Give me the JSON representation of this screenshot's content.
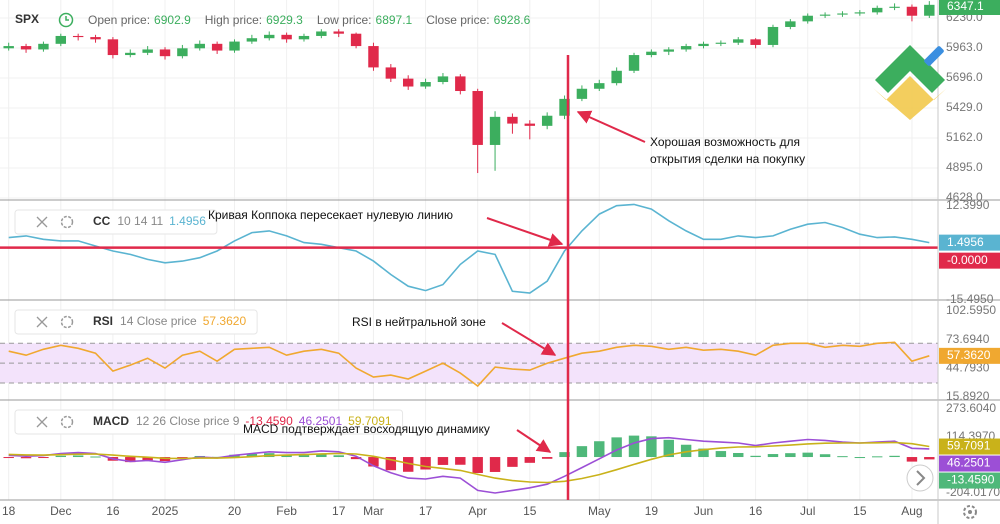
{
  "header": {
    "symbol": "SPX",
    "fields": [
      {
        "label": "Open price:",
        "value": 6902.9
      },
      {
        "label": "High price:",
        "value": 6929.3
      },
      {
        "label": "Low price:",
        "value": 6897.1
      },
      {
        "label": "Close price:",
        "value": 6928.6
      }
    ]
  },
  "chart_data": [
    {
      "type": "candlestick",
      "up_color": "#3cae5e",
      "down_color": "#e0294a",
      "grid": true,
      "categories": [
        "18",
        null,
        null,
        "Dec",
        null,
        null,
        "16",
        null,
        null,
        "2025",
        null,
        null,
        null,
        "20",
        null,
        null,
        "Feb",
        null,
        null,
        "17",
        null,
        "Mar",
        null,
        null,
        "17",
        null,
        null,
        "Apr",
        null,
        null,
        "15",
        null,
        null,
        null,
        "May",
        null,
        null,
        "19",
        null,
        null,
        "Jun",
        null,
        null,
        "16",
        null,
        null,
        "Jul",
        null,
        null,
        "15",
        null,
        null,
        "Aug",
        null
      ],
      "open": [
        5960,
        5980,
        5950,
        6000,
        6070,
        6060,
        6040,
        5900,
        5920,
        5950,
        5890,
        5960,
        6000,
        5940,
        6020,
        6050,
        6080,
        6040,
        6070,
        6110,
        6090,
        5980,
        5790,
        5690,
        5620,
        5660,
        5710,
        5580,
        5100,
        5350,
        5290,
        5270,
        5360,
        5510,
        5600,
        5650,
        5760,
        5900,
        5930,
        5950,
        5980,
        6000,
        6010,
        6040,
        5990,
        6150,
        6200,
        6250,
        6260,
        6270,
        6280,
        6320,
        6330,
        6250
      ],
      "high": [
        6010,
        6000,
        6020,
        6090,
        6090,
        6080,
        6060,
        5950,
        5980,
        5970,
        5990,
        6030,
        6020,
        6040,
        6080,
        6110,
        6100,
        6090,
        6130,
        6130,
        6100,
        6010,
        5820,
        5720,
        5690,
        5740,
        5730,
        5600,
        5400,
        5380,
        5320,
        5390,
        5540,
        5630,
        5680,
        5790,
        5920,
        5950,
        5970,
        6000,
        6020,
        6030,
        6060,
        6050,
        6170,
        6220,
        6270,
        6280,
        6290,
        6300,
        6340,
        6360,
        6350,
        6380
      ],
      "low": [
        5940,
        5920,
        5930,
        5980,
        6030,
        6010,
        5870,
        5880,
        5900,
        5860,
        5870,
        5940,
        5910,
        5920,
        6000,
        6030,
        6010,
        6020,
        6050,
        6060,
        5960,
        5760,
        5660,
        5590,
        5600,
        5640,
        5550,
        4850,
        4870,
        5200,
        5150,
        5240,
        5330,
        5490,
        5580,
        5630,
        5740,
        5880,
        5900,
        5930,
        5960,
        5980,
        5990,
        5960,
        5970,
        6130,
        6180,
        6230,
        6240,
        6250,
        6260,
        6300,
        6200,
        6230
      ],
      "close": [
        5980,
        5950,
        6000,
        6070,
        6060,
        6040,
        5900,
        5920,
        5950,
        5890,
        5960,
        6000,
        5940,
        6020,
        6050,
        6080,
        6040,
        6070,
        6110,
        6090,
        5980,
        5790,
        5690,
        5620,
        5660,
        5710,
        5580,
        5100,
        5350,
        5290,
        5270,
        5360,
        5510,
        5600,
        5650,
        5760,
        5900,
        5930,
        5950,
        5980,
        6000,
        6010,
        6040,
        5990,
        6150,
        6200,
        6250,
        6260,
        6270,
        6280,
        6320,
        6330,
        6250,
        6347.1
      ],
      "ylim": [
        4610,
        6390
      ],
      "yticks": [
        {
          "value": 6230,
          "label": "6230.0"
        },
        {
          "value": 5963,
          "label": "5963.0"
        },
        {
          "value": 5696,
          "label": "5696.0"
        },
        {
          "value": 5429,
          "label": "5429.0"
        },
        {
          "value": 5162,
          "label": "5162.0"
        },
        {
          "value": 4895,
          "label": "4895.0"
        },
        {
          "value": 4628,
          "label": "4628.0"
        }
      ]
    },
    {
      "type": "line",
      "name": "CC",
      "params": "10 14 11",
      "ylim": [
        -15.6,
        14.2
      ],
      "yticks": [
        {
          "value": 12.399,
          "label": "12.3990"
        },
        {
          "value": -15.495,
          "label": "-15.4950"
        }
      ],
      "zero_line": {
        "value": 0,
        "label": "-0.0000",
        "color": "#e0294a"
      },
      "series": [
        {
          "color": "#5ab4d1",
          "value_label": "1.4956",
          "values": [
            3,
            3.5,
            2.5,
            2,
            2,
            0.5,
            -1,
            -2,
            -3.5,
            -4.5,
            -4,
            -3,
            -1,
            2,
            4.5,
            5,
            3.5,
            1.5,
            1,
            0,
            -1,
            -4,
            -8,
            -11.5,
            -12.8,
            -11,
            -5,
            -1,
            -2,
            -13,
            -13.5,
            -10,
            -1,
            5,
            10,
            12.5,
            12.9,
            11.5,
            8,
            5,
            2.5,
            2.5,
            3.5,
            3,
            3.5,
            5.5,
            7,
            7.5,
            6,
            4,
            3,
            3.2,
            2.5,
            1.4956
          ]
        }
      ]
    },
    {
      "type": "line",
      "name": "RSI",
      "params": "14 Close price",
      "ylim": [
        12.9,
        113.6
      ],
      "yticks": [
        {
          "value": 102.595,
          "label": "102.5950"
        },
        {
          "value": 73.694,
          "label": "73.6940"
        },
        {
          "value": 44.793,
          "label": "44.7930"
        },
        {
          "value": 15.892,
          "label": "15.8920"
        }
      ],
      "band": [
        30,
        70
      ],
      "band_color": "#f3e3fb",
      "levels": [
        30,
        50,
        70
      ],
      "series": [
        {
          "color": "#f0a830",
          "value_label": "57.3620",
          "values": [
            62,
            58,
            64,
            68,
            65,
            60,
            42,
            48,
            55,
            45,
            58,
            62,
            52,
            64,
            65,
            66,
            58,
            62,
            64,
            60,
            45,
            36,
            38,
            34,
            42,
            50,
            40,
            27,
            46,
            44,
            43,
            50,
            55,
            60,
            62,
            66,
            68,
            67,
            64,
            66,
            63,
            64,
            62,
            58,
            68,
            70,
            70,
            66,
            68,
            67,
            70,
            71,
            52,
            57.362
          ]
        }
      ]
    },
    {
      "type": "line",
      "name": "MACD",
      "params": "12 26 Close price 9",
      "ylim": [
        -244.7,
        324.8
      ],
      "yticks": [
        {
          "value": 273.604,
          "label": "273.6040"
        },
        {
          "value": 114.397,
          "label": "114.3970"
        },
        {
          "value": -204.017,
          "label": "-204.0170"
        }
      ],
      "series": [
        {
          "kind": "histogram",
          "color": "#4fb87a",
          "negative_color": "#e0294a",
          "value_label": "-13.4590",
          "values": [
            -5,
            -7,
            -3,
            7,
            9,
            3,
            -21,
            -29,
            -19,
            -23,
            -7,
            6,
            1,
            13,
            18,
            22,
            14,
            11,
            17,
            10,
            -12,
            -54,
            -75,
            -84,
            -71,
            -45,
            -44,
            -91,
            -85,
            -56,
            -33,
            -10,
            28,
            62,
            90,
            112,
            122,
            118,
            98,
            70,
            48,
            34,
            23,
            7,
            17,
            22,
            25,
            16,
            5,
            0,
            4,
            7,
            -26,
            -13.459
          ]
        },
        {
          "kind": "line",
          "color": "#9c4fd6",
          "value_label": "46.2501",
          "values": [
            10,
            5,
            8,
            20,
            25,
            20,
            -10,
            -25,
            -20,
            -30,
            -15,
            0,
            -5,
            10,
            20,
            30,
            25,
            25,
            35,
            30,
            5,
            -50,
            -90,
            -120,
            -125,
            -110,
            -120,
            -190,
            -205,
            -190,
            -175,
            -155,
            -110,
            -60,
            -10,
            40,
            80,
            105,
            110,
            100,
            90,
            85,
            80,
            65,
            80,
            90,
            100,
            95,
            85,
            80,
            85,
            90,
            50,
            46.2501
          ]
        },
        {
          "kind": "line",
          "color": "#c9b21a",
          "value_label": "59.7091",
          "values": [
            15,
            12,
            11,
            13,
            16,
            17,
            11,
            4,
            -1,
            -7,
            -8,
            -6,
            -6,
            -3,
            2,
            8,
            11,
            14,
            18,
            20,
            17,
            4,
            -15,
            -36,
            -54,
            -65,
            -76,
            -99,
            -120,
            -134,
            -142,
            -145,
            -138,
            -122,
            -100,
            -72,
            -42,
            -13,
            12,
            30,
            42,
            51,
            57,
            58,
            63,
            68,
            75,
            79,
            80,
            80,
            81,
            83,
            76,
            59.7091
          ]
        }
      ]
    }
  ],
  "annotations": [
    {
      "lines": [
        "Хорошая возможность для",
        "открытия сделки на покупку"
      ]
    },
    {
      "lines": [
        "Кривая Коппока пересекает нулевую линию"
      ]
    },
    {
      "lines": [
        "RSI в нейтральной зоне"
      ]
    },
    {
      "lines": [
        "MACD подтверждает восходящую динамику"
      ]
    }
  ]
}
